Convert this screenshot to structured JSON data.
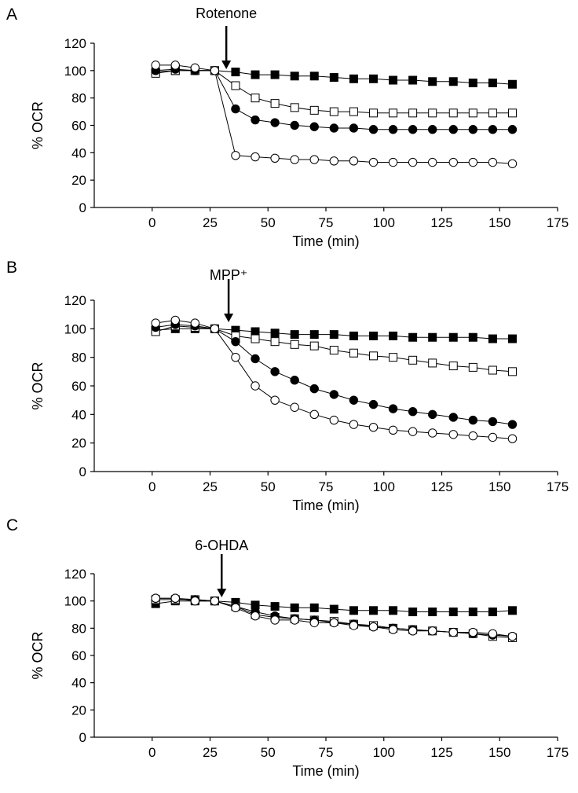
{
  "chart_data": [
    {
      "type": "line",
      "panel_label": "A",
      "annotation": {
        "text": "Rotenone",
        "x": 32
      },
      "xlabel": "Time (min)",
      "ylabel": "% OCR",
      "xlim": [
        -25,
        175
      ],
      "ylim": [
        0,
        120
      ],
      "xticks": [
        0,
        25,
        50,
        75,
        100,
        125,
        150,
        175
      ],
      "yticks": [
        0,
        20,
        40,
        60,
        80,
        100,
        120
      ],
      "x": [
        1.5,
        10,
        18.5,
        27,
        36,
        44.5,
        53,
        61.5,
        70,
        78.5,
        87,
        95.5,
        104,
        112.5,
        121,
        130,
        138.5,
        147,
        155.5
      ],
      "series": [
        {
          "name": "filled-square",
          "marker": "square",
          "fill": "#000000",
          "values": [
            99,
            100,
            100,
            100,
            99,
            97,
            97,
            96,
            96,
            95,
            94,
            94,
            93,
            93,
            92,
            92,
            91,
            91,
            90
          ]
        },
        {
          "name": "open-square",
          "marker": "square",
          "fill": "#ffffff",
          "values": [
            98,
            100,
            100,
            100,
            89,
            80,
            76,
            73,
            71,
            70,
            70,
            69,
            69,
            69,
            69,
            69,
            69,
            69,
            69
          ]
        },
        {
          "name": "filled-circle",
          "marker": "circle",
          "fill": "#000000",
          "values": [
            100,
            101,
            100,
            100,
            72,
            64,
            62,
            60,
            59,
            58,
            58,
            57,
            57,
            57,
            57,
            57,
            57,
            57,
            57
          ]
        },
        {
          "name": "open-circle",
          "marker": "circle",
          "fill": "#ffffff",
          "values": [
            104,
            104,
            102,
            100,
            38,
            37,
            36,
            35,
            35,
            34,
            34,
            33,
            33,
            33,
            33,
            33,
            33,
            33,
            32
          ]
        }
      ]
    },
    {
      "type": "line",
      "panel_label": "B",
      "annotation": {
        "text": "MPP⁺",
        "x": 33
      },
      "xlabel": "Time (min)",
      "ylabel": "% OCR",
      "xlim": [
        -25,
        175
      ],
      "ylim": [
        0,
        120
      ],
      "xticks": [
        0,
        25,
        50,
        75,
        100,
        125,
        150,
        175
      ],
      "yticks": [
        0,
        20,
        40,
        60,
        80,
        100,
        120
      ],
      "x": [
        1.5,
        10,
        18.5,
        27,
        36,
        44.5,
        53,
        61.5,
        70,
        78.5,
        87,
        95.5,
        104,
        112.5,
        121,
        130,
        138.5,
        147,
        155.5
      ],
      "series": [
        {
          "name": "filled-square",
          "marker": "square",
          "fill": "#000000",
          "values": [
            99,
            100,
            100,
            100,
            99,
            98,
            97,
            96,
            96,
            96,
            95,
            95,
            95,
            94,
            94,
            94,
            94,
            93,
            93
          ]
        },
        {
          "name": "open-square",
          "marker": "square",
          "fill": "#ffffff",
          "values": [
            98,
            102,
            101,
            100,
            95,
            93,
            91,
            89,
            88,
            85,
            83,
            81,
            80,
            78,
            76,
            74,
            73,
            71,
            70
          ]
        },
        {
          "name": "filled-circle",
          "marker": "circle",
          "fill": "#000000",
          "values": [
            101,
            103,
            102,
            100,
            91,
            79,
            70,
            64,
            58,
            54,
            50,
            47,
            44,
            42,
            40,
            38,
            36,
            35,
            33
          ]
        },
        {
          "name": "open-circle",
          "marker": "circle",
          "fill": "#ffffff",
          "values": [
            104,
            106,
            104,
            100,
            80,
            60,
            50,
            45,
            40,
            36,
            33,
            31,
            29,
            28,
            27,
            26,
            25,
            24,
            23
          ]
        }
      ]
    },
    {
      "type": "line",
      "panel_label": "C",
      "annotation": {
        "text": "6-OHDA",
        "x": 30
      },
      "xlabel": "Time (min)",
      "ylabel": "% OCR",
      "xlim": [
        -25,
        175
      ],
      "ylim": [
        0,
        120
      ],
      "xticks": [
        0,
        25,
        50,
        75,
        100,
        125,
        150,
        175
      ],
      "yticks": [
        0,
        20,
        40,
        60,
        80,
        100,
        120
      ],
      "x": [
        1.5,
        10,
        18.5,
        27,
        36,
        44.5,
        53,
        61.5,
        70,
        78.5,
        87,
        95.5,
        104,
        112.5,
        121,
        130,
        138.5,
        147,
        155.5
      ],
      "series": [
        {
          "name": "filled-square",
          "marker": "square",
          "fill": "#000000",
          "values": [
            98,
            100,
            100,
            100,
            99,
            97,
            96,
            95,
            95,
            94,
            93,
            93,
            93,
            92,
            92,
            92,
            92,
            92,
            93
          ]
        },
        {
          "name": "open-square",
          "marker": "square",
          "fill": "#ffffff",
          "values": [
            101,
            101,
            101,
            100,
            96,
            90,
            88,
            87,
            86,
            85,
            83,
            82,
            80,
            79,
            78,
            77,
            76,
            74,
            73
          ]
        },
        {
          "name": "filled-circle",
          "marker": "circle",
          "fill": "#000000",
          "values": [
            102,
            102,
            101,
            100,
            96,
            92,
            89,
            87,
            86,
            84,
            83,
            81,
            80,
            79,
            78,
            77,
            76,
            75,
            74
          ]
        },
        {
          "name": "open-circle",
          "marker": "circle",
          "fill": "#ffffff",
          "values": [
            102,
            102,
            100,
            100,
            95,
            89,
            86,
            86,
            84,
            84,
            82,
            81,
            79,
            78,
            78,
            77,
            77,
            76,
            74
          ]
        }
      ]
    }
  ]
}
